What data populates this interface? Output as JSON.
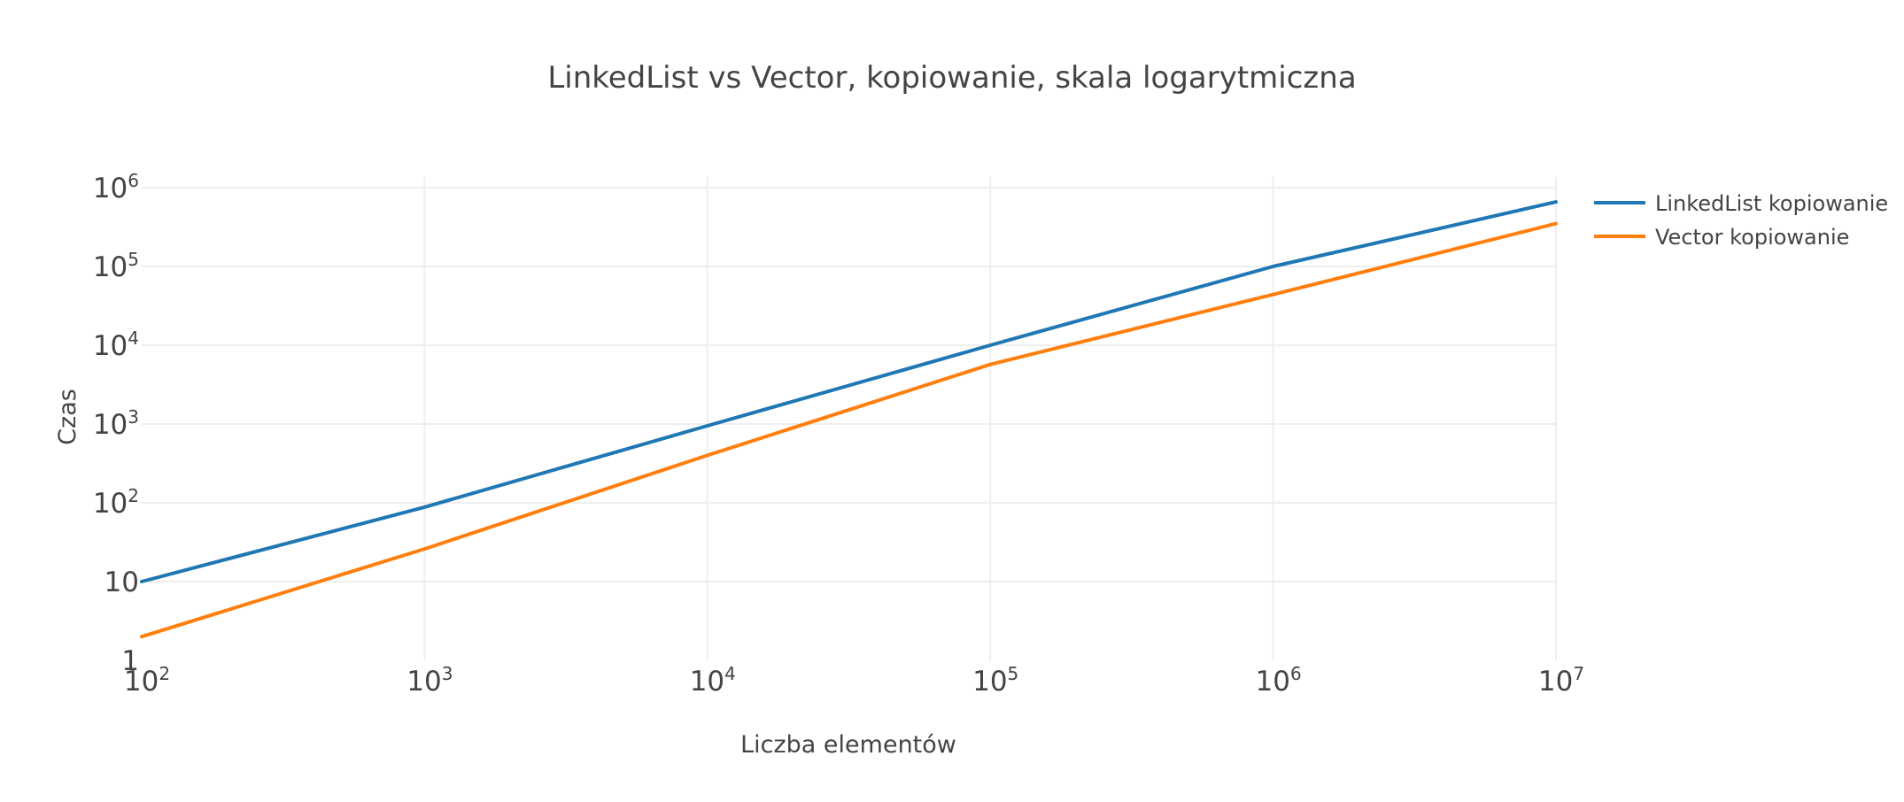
{
  "chart_data": {
    "type": "line",
    "title": "LinkedList vs Vector, kopiowanie, skala logarytmiczna",
    "xlabel": "Liczba elementów",
    "ylabel": "Czas",
    "x_scale": "log",
    "y_scale": "log",
    "xlim": [
      100,
      10000000
    ],
    "ylim": [
      1,
      1000000
    ],
    "grid": true,
    "legend_position": "top-right",
    "x_ticks": [
      {
        "base": "10",
        "exp": "2",
        "value": 100
      },
      {
        "base": "10",
        "exp": "3",
        "value": 1000
      },
      {
        "base": "10",
        "exp": "4",
        "value": 10000
      },
      {
        "base": "10",
        "exp": "5",
        "value": 100000
      },
      {
        "base": "10",
        "exp": "6",
        "value": 1000000
      },
      {
        "base": "10",
        "exp": "7",
        "value": 10000000
      }
    ],
    "y_ticks": [
      {
        "base": "1",
        "exp": "",
        "value": 1
      },
      {
        "base": "10",
        "exp": "",
        "value": 10
      },
      {
        "base": "10",
        "exp": "2",
        "value": 100
      },
      {
        "base": "10",
        "exp": "3",
        "value": 1000
      },
      {
        "base": "10",
        "exp": "4",
        "value": 10000
      },
      {
        "base": "10",
        "exp": "5",
        "value": 100000
      },
      {
        "base": "10",
        "exp": "6",
        "value": 1000000
      }
    ],
    "x": [
      100,
      1000,
      10000,
      100000,
      1000000,
      10000000
    ],
    "series": [
      {
        "name": "LinkedList kopiowanie",
        "color": "#1f77b4",
        "values": [
          10,
          88,
          950,
          10000,
          100000,
          660000
        ]
      },
      {
        "name": "Vector kopiowanie",
        "color": "#ff7f0e",
        "values": [
          2,
          26,
          400,
          5700,
          44000,
          350000
        ]
      }
    ]
  }
}
